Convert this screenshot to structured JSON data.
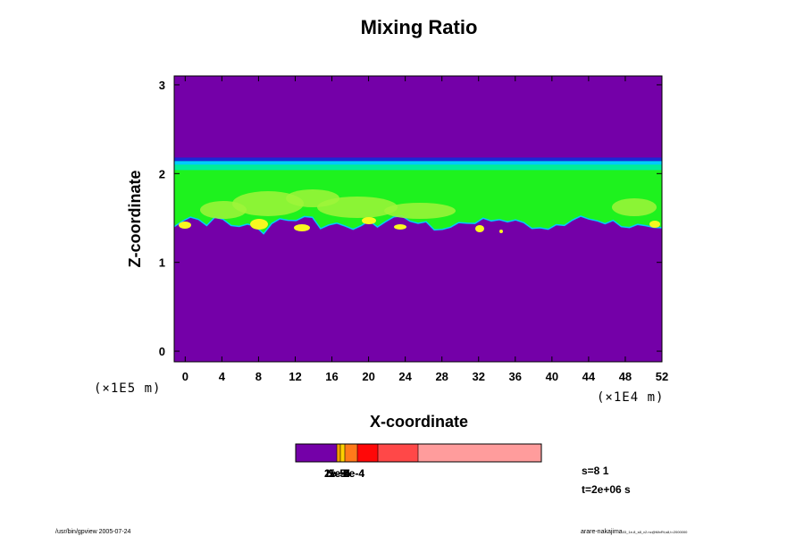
{
  "chart_data": {
    "type": "heatmap",
    "title": "Mixing Ratio",
    "xlabel": "X-coordinate",
    "ylabel": "Z-coordinate",
    "x_unit": "(×1E4 m)",
    "y_unit": "(×1E5 m)",
    "xlim": [
      -1.2,
      52
    ],
    "ylim": [
      -0.12,
      3.1
    ],
    "x_ticks": [
      "0",
      "4",
      "8",
      "12",
      "16",
      "20",
      "24",
      "28",
      "32",
      "36",
      "40",
      "44",
      "48",
      "52"
    ],
    "y_ticks": [
      "0",
      "1",
      "2",
      "3"
    ],
    "background_value_color": "#7400a8",
    "mixed_layer": {
      "z_top": 2.15,
      "z_bottom_approx": 1.45,
      "fill_color": "#1ef21e",
      "edge_colors": [
        "#1a2ad6",
        "#00ccff",
        "#00ee99"
      ],
      "high_value_patch_color": "#f8f820",
      "mid_value_patch_color": "#9ff53a"
    },
    "colorbar": {
      "labels_overlapping": [
        "1e-5",
        "2e-5",
        "5e-5",
        "1e-4",
        "2e-4",
        "5e-4"
      ],
      "colors": [
        "#7400a8",
        "#f6a000",
        "#ffd000",
        "#ff7a1a",
        "#ff0808",
        "#ff4848",
        "#ff9c9c"
      ]
    },
    "annotations": {
      "s": "s=8 1",
      "t": "t=2e+06 s"
    }
  },
  "footer": {
    "left": "/usr/bin/gpview 2005-07-24",
    "right_main": "arare-nakajima",
    "right_small": "03_1e-8_s8_v2.nc@MixRt,s8,t=2000000"
  }
}
